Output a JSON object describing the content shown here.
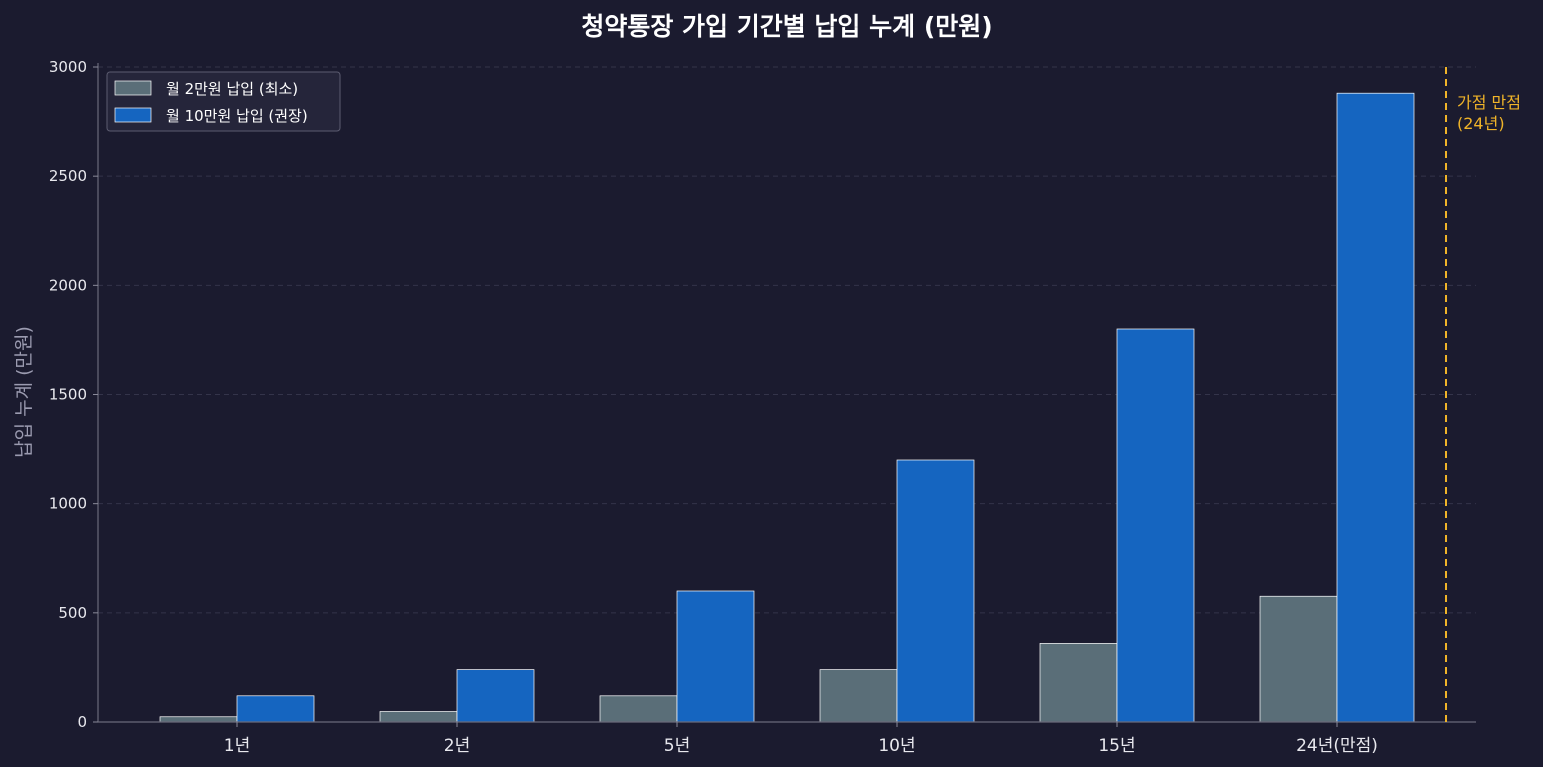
{
  "chart_data": {
    "type": "bar",
    "title": "청약통장 가입 기간별 납입 누계 (만원)",
    "xlabel": "",
    "ylabel": "납입 누계 (만원)",
    "categories": [
      "1년",
      "2년",
      "5년",
      "10년",
      "15년",
      "24년(만점)"
    ],
    "series": [
      {
        "name": "월 2만원 납입 (최소)",
        "values": [
          24,
          48,
          120,
          240,
          360,
          576
        ],
        "color": "#5a6e78"
      },
      {
        "name": "월 10만원 납입 (권장)",
        "values": [
          120,
          240,
          600,
          1200,
          1800,
          2880
        ],
        "color": "#1565c0"
      }
    ],
    "ylim": [
      0,
      3000
    ],
    "yticks": [
      0,
      500,
      1000,
      1500,
      2000,
      2500,
      3000
    ],
    "grid": true,
    "legend_position": "top-left",
    "annotation": {
      "text_line1": "가점 만점",
      "text_line2": "(24년)",
      "color": "#f0b429"
    },
    "background": "#1b1b2f"
  }
}
